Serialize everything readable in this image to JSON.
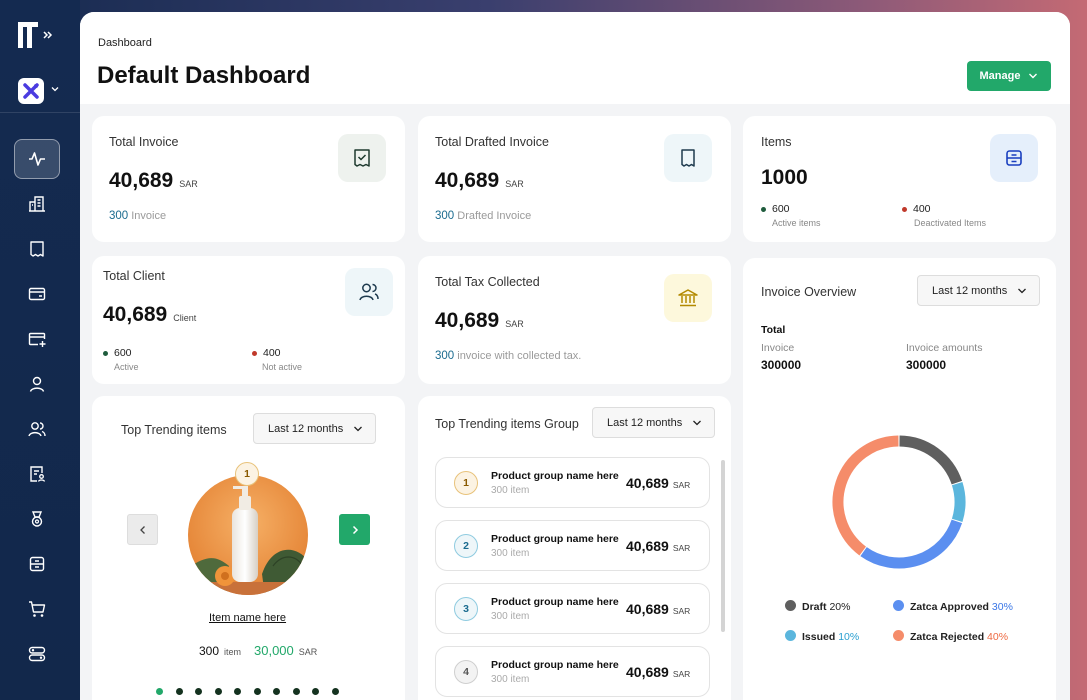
{
  "header": {
    "breadcrumb": "Dashboard",
    "title": "Default Dashboard",
    "manage_label": "Manage"
  },
  "cards": {
    "total_invoice": {
      "label": "Total Invoice",
      "value": "40,689",
      "unit": "SAR",
      "sub_count": "300",
      "sub_text": "Invoice"
    },
    "total_drafted": {
      "label": "Total Drafted Invoice",
      "value": "40,689",
      "unit": "SAR",
      "sub_count": "300",
      "sub_text": "Drafted Invoice"
    },
    "items": {
      "label": "Items",
      "value": "1000",
      "active_value": "600",
      "active_label": "Active items",
      "inactive_value": "400",
      "inactive_label": "Deactivated Items"
    },
    "total_client": {
      "label": "Total Client",
      "value": "40,689",
      "unit": "Client",
      "active_value": "600",
      "active_label": "Active",
      "inactive_value": "400",
      "inactive_label": "Not active"
    },
    "total_tax": {
      "label": "Total Tax Collected",
      "value": "40,689",
      "unit": "SAR",
      "sub_count": "300",
      "sub_text": "invoice with collected tax."
    }
  },
  "trending": {
    "title": "Top Trending items",
    "period": "Last 12 months",
    "rank": "1",
    "item_name": "Item name here",
    "item_count": "300",
    "item_unit": "item",
    "item_amount": "30,000",
    "item_currency": "SAR",
    "pages": 10,
    "active_page": 1
  },
  "trending_group": {
    "title": "Top Trending items Group",
    "period": "Last 12 months",
    "rows": [
      {
        "rank": "1",
        "name": "Product group name here",
        "count": "300 item",
        "value": "40,689",
        "unit": "SAR"
      },
      {
        "rank": "2",
        "name": "Product group name here",
        "count": "300 item",
        "value": "40,689",
        "unit": "SAR"
      },
      {
        "rank": "3",
        "name": "Product group name here",
        "count": "300 item",
        "value": "40,689",
        "unit": "SAR"
      },
      {
        "rank": "4",
        "name": "Product group name here",
        "count": "300 item",
        "value": "40,689",
        "unit": "SAR"
      }
    ]
  },
  "overview": {
    "title": "Invoice Overview",
    "period": "Last 12 months",
    "total_label": "Total",
    "invoice_label": "Invoice",
    "invoice_value": "300000",
    "amount_label": "Invoice amounts",
    "amount_value": "300000",
    "legend": [
      {
        "label": "Draft",
        "pct": "20%",
        "color": "#5f5f5f"
      },
      {
        "label": "Zatca Approved",
        "pct": "30%",
        "color": "#5b8ff0"
      },
      {
        "label": "Issued",
        "pct": "10%",
        "color": "#5bb6dd"
      },
      {
        "label": "Zatca Rejected",
        "pct": "40%",
        "color": "#f58c6a"
      }
    ]
  },
  "colors": {
    "accent_green": "#22a86a",
    "link_blue": "#1a6b8f",
    "active_dot": "#1f5c3d",
    "inactive_dot": "#c0392b"
  }
}
